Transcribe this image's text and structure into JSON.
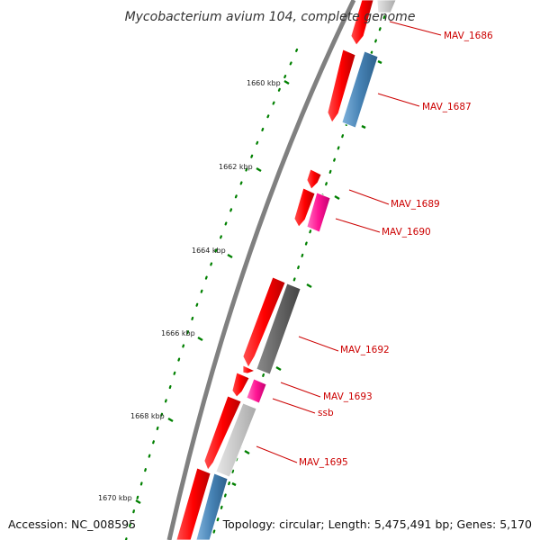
{
  "title": "Mycobacterium avium 104, complete genome",
  "footer": {
    "accession": "Accession: NC_008595",
    "summary": "Topology: circular; Length: 5,475,491 bp; Genes: 5,170"
  },
  "scale_ticks": [
    {
      "label": "1660 kbp"
    },
    {
      "label": "1662 kbp"
    },
    {
      "label": "1664 kbp"
    },
    {
      "label": "1666 kbp"
    },
    {
      "label": "1668 kbp"
    },
    {
      "label": "1670 kbp"
    }
  ],
  "gene_labels": [
    {
      "label": "MAV_1686"
    },
    {
      "label": "MAV_1687"
    },
    {
      "label": "MAV_1689"
    },
    {
      "label": "MAV_1690"
    },
    {
      "label": "MAV_1692"
    },
    {
      "label": "MAV_1693"
    },
    {
      "label": "ssb"
    },
    {
      "label": "MAV_1695"
    }
  ],
  "colors": {
    "cds_red": "#ff0000",
    "steelblue": "#4682b4",
    "magenta": "#ff1493",
    "dark_gray": "#666666",
    "light_gray": "#c8c8c8",
    "backbone": "#808080",
    "tick_green": "#008000",
    "label_red": "#cc0000"
  }
}
